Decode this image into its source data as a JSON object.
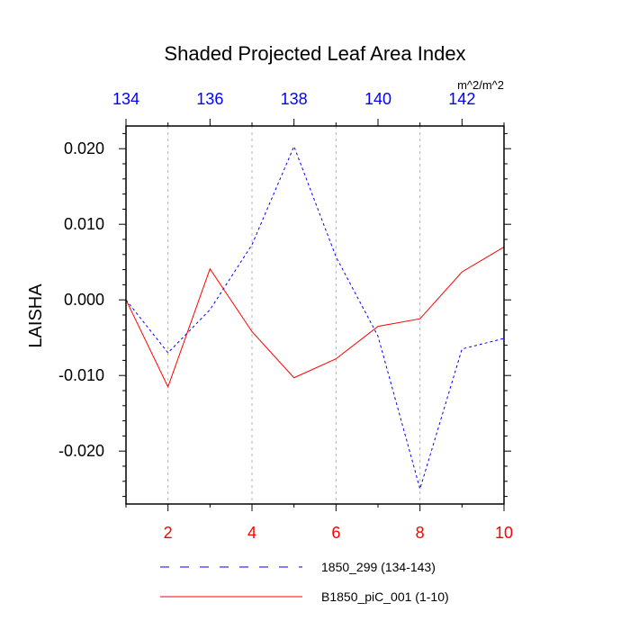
{
  "chart_data": {
    "type": "line",
    "title": "Shaded Projected Leaf Area Index",
    "units": "m^2/m^2",
    "ylabel": "LAISHA",
    "ylim": [
      -0.027,
      0.023
    ],
    "y_ticks": [
      {
        "value": 0.02,
        "label": "0.020"
      },
      {
        "value": 0.01,
        "label": "0.010"
      },
      {
        "value": 0.0,
        "label": "0.000"
      },
      {
        "value": -0.01,
        "label": "-0.010"
      },
      {
        "value": -0.02,
        "label": "-0.020"
      }
    ],
    "x_bottom": {
      "range": [
        1,
        10
      ],
      "ticks": [
        2,
        4,
        6,
        8,
        10
      ],
      "color": "#ff0000"
    },
    "x_top": {
      "range": [
        134,
        143
      ],
      "ticks": [
        134,
        136,
        138,
        140,
        142
      ],
      "color": "#0000ff"
    },
    "grid": "vertical dashed at bottom major ticks",
    "series": [
      {
        "name": "1850_299 (134-143)",
        "color": "#0000ff",
        "dash": "dashed",
        "axis": "top",
        "x": [
          134,
          135,
          136,
          137,
          138,
          139,
          140,
          141,
          142,
          143
        ],
        "values": [
          0.0,
          -0.007,
          -0.0013,
          0.0073,
          0.0203,
          0.0057,
          -0.0048,
          -0.025,
          -0.0065,
          -0.0051
        ]
      },
      {
        "name": "B1850_piC_001 (1-10)",
        "color": "#ff0000",
        "dash": "solid",
        "axis": "bottom",
        "x": [
          1,
          2,
          3,
          4,
          5,
          6,
          7,
          8,
          9,
          10
        ],
        "values": [
          0.0,
          -0.0115,
          0.0041,
          -0.0042,
          -0.0103,
          -0.0078,
          -0.0035,
          -0.0025,
          0.0037,
          0.007
        ]
      }
    ],
    "legend_position": "bottom"
  }
}
